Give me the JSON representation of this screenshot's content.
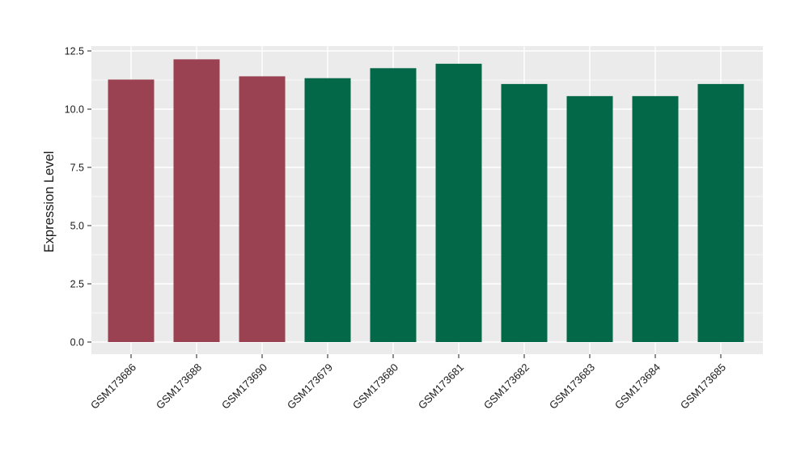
{
  "chart_data": {
    "type": "bar",
    "title": "",
    "xlabel": "",
    "ylabel": "Expression Level",
    "categories": [
      "GSM173686",
      "GSM173688",
      "GSM173690",
      "GSM173679",
      "GSM173680",
      "GSM173681",
      "GSM173682",
      "GSM173683",
      "GSM173684",
      "GSM173685"
    ],
    "values": [
      11.27,
      12.14,
      11.41,
      11.33,
      11.76,
      11.95,
      11.08,
      10.56,
      10.56,
      11.08
    ],
    "bar_colors": [
      "#9B4252",
      "#9B4252",
      "#9B4252",
      "#026848",
      "#026848",
      "#026848",
      "#026848",
      "#026848",
      "#026848",
      "#026848"
    ],
    "group_colors": {
      "maroon_group": "#9B4252",
      "green_group": "#026848"
    },
    "yticks": [
      0.0,
      2.5,
      5.0,
      7.5,
      10.0,
      12.5
    ],
    "ytick_labels": [
      "0.0",
      "2.5",
      "5.0",
      "7.5",
      "10.0",
      "12.5"
    ],
    "minor_ticks": [
      1.25,
      3.75,
      6.25,
      8.75,
      11.25
    ],
    "ylim": [
      0,
      12.7
    ],
    "grid": true,
    "legend_position": "none",
    "x_label_angle": -45,
    "styles": {
      "figure_bg": "#FFFFFF",
      "panel_bg": "#EBEBEB",
      "grid_color": "#FFFFFF",
      "text_color": "#1A1A1A",
      "tick_color": "#333333"
    }
  }
}
